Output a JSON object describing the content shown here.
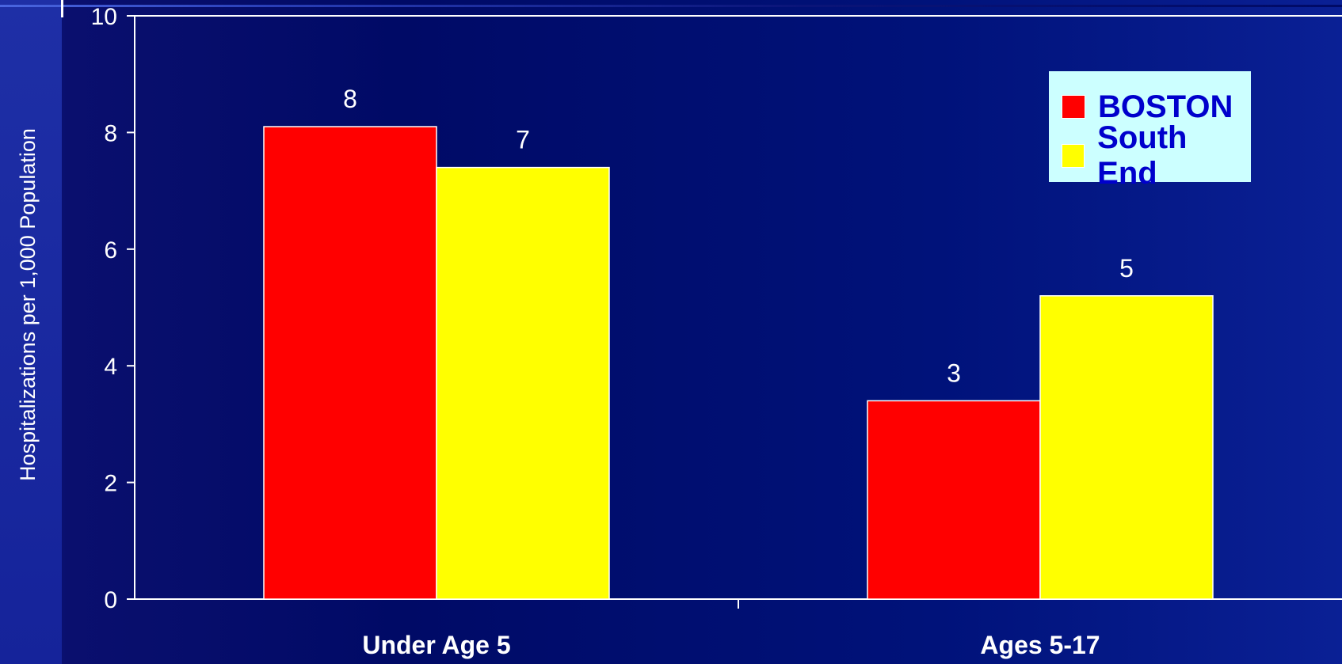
{
  "colors": {
    "background": "#000066",
    "boston": "#ff0000",
    "south_end": "#ffff00",
    "legend_bg": "#ccffff",
    "legend_text": "#0000cc",
    "axis": "#ffffff"
  },
  "chart_data": {
    "type": "bar",
    "categories": [
      "Under Age 5",
      "Ages 5-17"
    ],
    "series": [
      {
        "name": "BOSTON",
        "values": [
          8.1,
          3.4
        ],
        "labels": [
          "8",
          "3"
        ],
        "color": "#ff0000"
      },
      {
        "name": "South End",
        "values": [
          7.4,
          5.2
        ],
        "labels": [
          "7",
          "5"
        ],
        "color": "#ffff00"
      }
    ],
    "ylabel": "Hospitalizations  per 1,000 Population",
    "ylim": [
      0,
      10
    ],
    "yticks": [
      "0",
      "2",
      "4",
      "6",
      "8",
      "10"
    ],
    "grid": false,
    "legend_position": "top-right"
  }
}
